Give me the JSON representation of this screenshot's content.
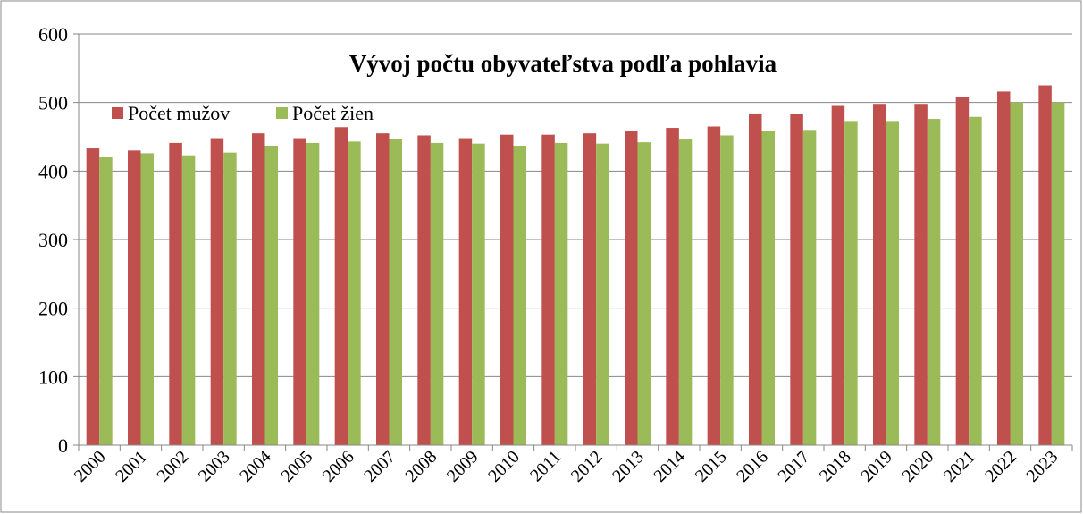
{
  "chart_data": {
    "type": "bar",
    "title": "Vývoj počtu obyvateľstva podľa pohlavia",
    "categories": [
      "2000",
      "2001",
      "2002",
      "2003",
      "2004",
      "2005",
      "2006",
      "2007",
      "2008",
      "2009",
      "2010",
      "2011",
      "2012",
      "2013",
      "2014",
      "2015",
      "2016",
      "2017",
      "2018",
      "2019",
      "2020",
      "2021",
      "2022",
      "2023"
    ],
    "series": [
      {
        "name": "Počet mužov",
        "color": "#c0504d",
        "values": [
          433,
          430,
          441,
          448,
          455,
          448,
          464,
          455,
          452,
          448,
          453,
          453,
          455,
          458,
          463,
          465,
          484,
          483,
          495,
          498,
          498,
          508,
          516,
          525
        ]
      },
      {
        "name": "Počet žien",
        "color": "#9bbb59",
        "values": [
          420,
          426,
          423,
          427,
          437,
          441,
          443,
          447,
          441,
          440,
          437,
          441,
          440,
          442,
          446,
          452,
          458,
          460,
          473,
          473,
          476,
          479,
          500,
          500
        ]
      }
    ],
    "ylim": [
      0,
      600
    ],
    "yticks": [
      0,
      100,
      200,
      300,
      400,
      500,
      600
    ],
    "grid": true,
    "legend": "top-left"
  }
}
